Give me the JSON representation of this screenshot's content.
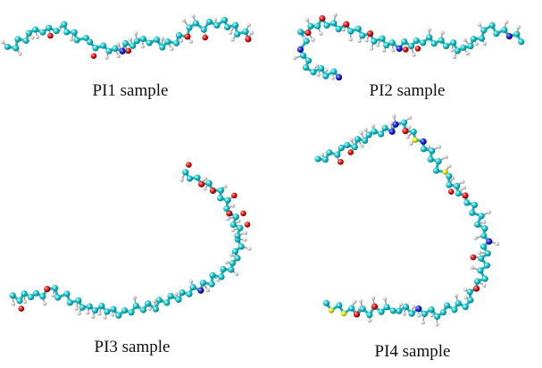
{
  "panels": [
    {
      "label": "PI1 sample"
    },
    {
      "label": "PI2 sample"
    },
    {
      "label": "PI3 sample"
    },
    {
      "label": "PI4 sample"
    }
  ]
}
